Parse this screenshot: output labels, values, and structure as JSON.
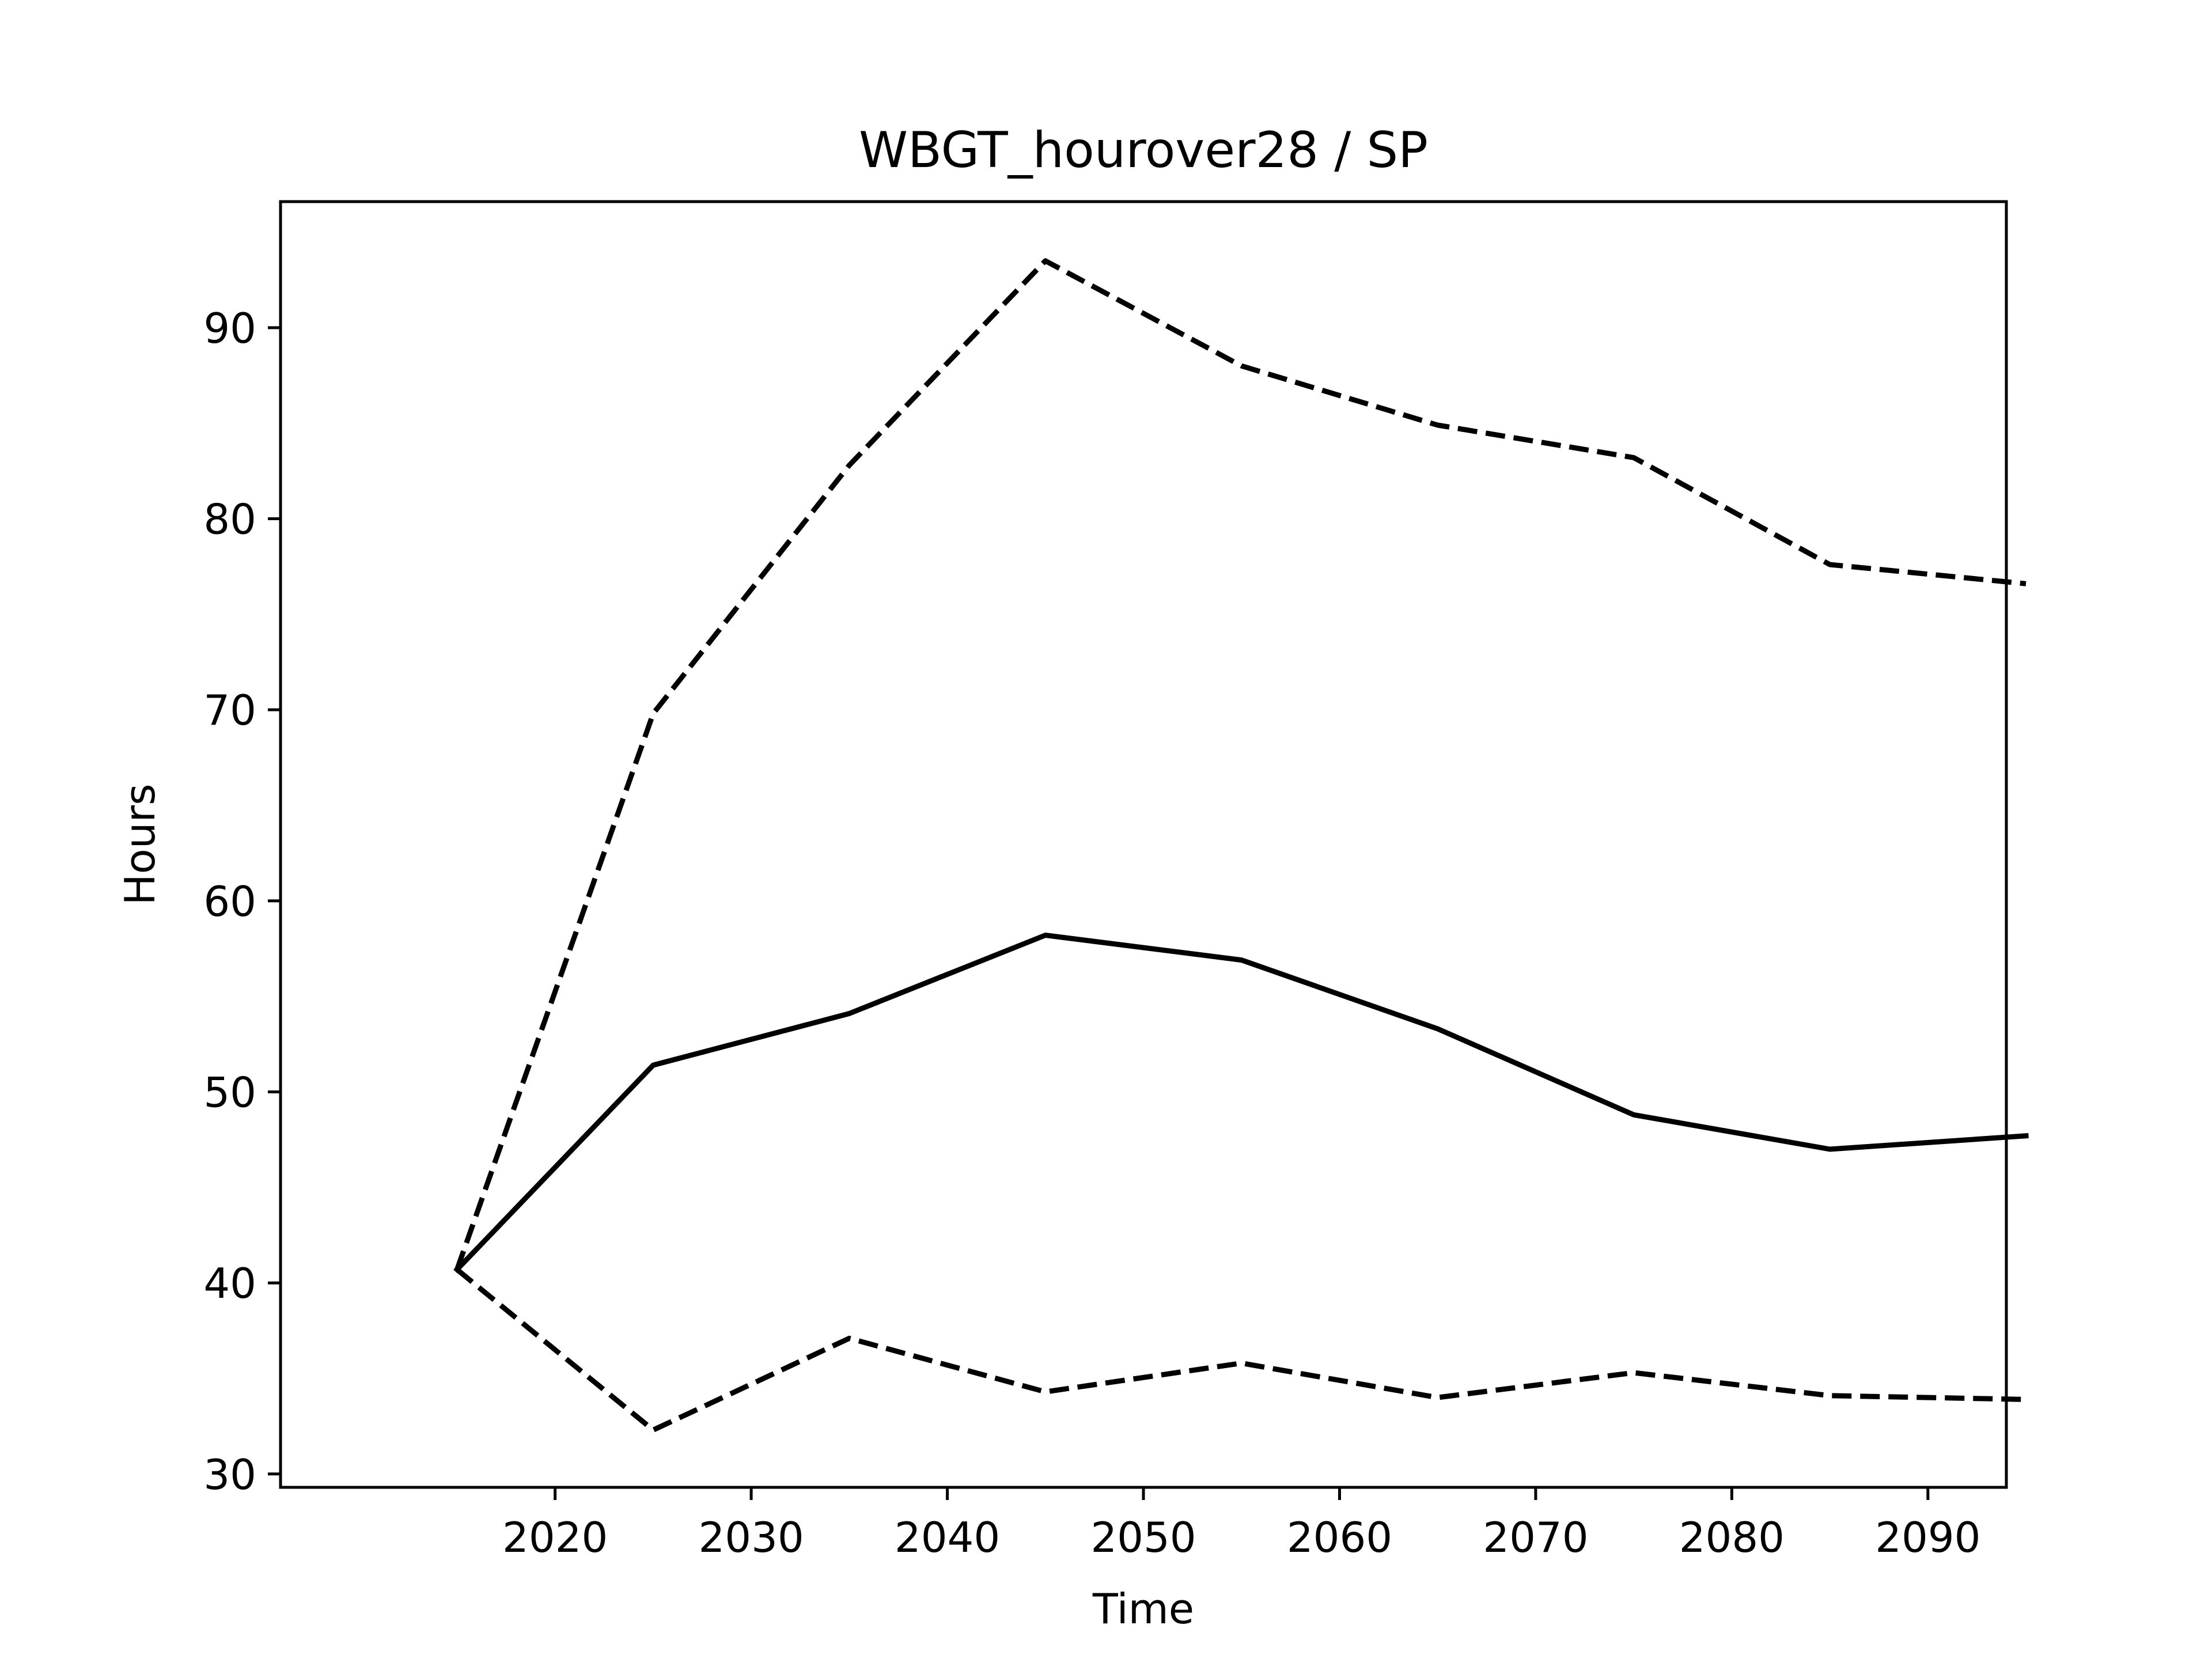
{
  "chart_data": {
    "type": "line",
    "title": "WBGT_hourover28 / SP",
    "xlabel": "Time",
    "ylabel": "Hours",
    "x": [
      2015,
      2025,
      2035,
      2045,
      2055,
      2065,
      2075,
      2085,
      2095
    ],
    "xlim": [
      2006,
      2094
    ],
    "ylim": [
      29.3,
      96.6
    ],
    "xticks": [
      2020,
      2030,
      2040,
      2050,
      2060,
      2070,
      2080,
      2090
    ],
    "yticks": [
      30,
      40,
      50,
      60,
      70,
      80,
      90
    ],
    "grid": false,
    "legend": "none",
    "line_color": "#000000",
    "series": [
      {
        "style": "solid",
        "values": [
          40.7,
          51.4,
          54.1,
          58.2,
          56.9,
          53.3,
          48.8,
          47.0,
          47.7
        ]
      },
      {
        "style": "dashed",
        "values": [
          40.7,
          69.8,
          82.8,
          93.5,
          88.0,
          84.9,
          83.2,
          77.6,
          76.6
        ]
      },
      {
        "style": "dashed",
        "values": [
          40.7,
          32.3,
          37.1,
          34.3,
          35.8,
          34.0,
          35.3,
          34.1,
          33.9
        ]
      }
    ]
  }
}
